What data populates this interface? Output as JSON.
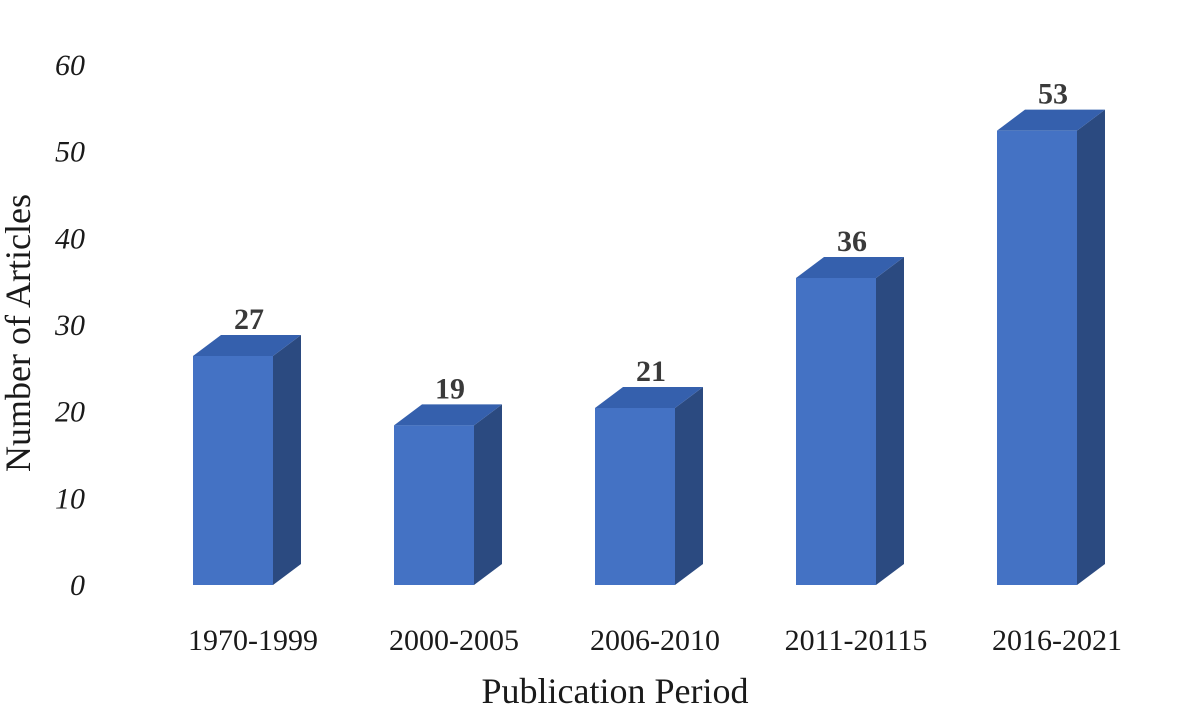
{
  "chart_data": {
    "type": "bar",
    "style": "3d-column",
    "categories": [
      "1970-1999",
      "2000-2005",
      "2006-2010",
      "2011-20115",
      "2016-2021"
    ],
    "values": [
      27,
      19,
      21,
      36,
      53
    ],
    "title": "",
    "xlabel": "Publication Period",
    "ylabel": "Number of Articles",
    "ylim": [
      0,
      60
    ],
    "yticks": [
      0,
      10,
      20,
      30,
      40,
      50,
      60
    ],
    "grid": false,
    "legend": "none",
    "colors": {
      "front": "#4472c4",
      "side": "#2b4a80",
      "top": "#3560ad"
    }
  }
}
